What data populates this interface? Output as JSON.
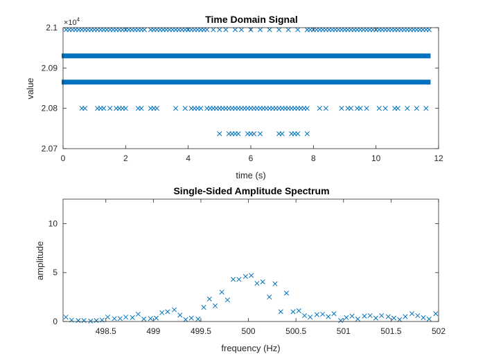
{
  "chart_data": [
    {
      "type": "scatter",
      "title": "Time Domain Signal",
      "xlabel": "time (s)",
      "ylabel": "value",
      "xlim": [
        0,
        12
      ],
      "ylim": [
        20700,
        21000
      ],
      "xticks": [
        0,
        2,
        4,
        6,
        8,
        10,
        12
      ],
      "xtick_labels": [
        "0",
        "2",
        "4",
        "6",
        "8",
        "10",
        "12"
      ],
      "yticks": [
        20700,
        20800,
        20900,
        21000
      ],
      "ytick_labels": [
        "2.07",
        "2.08",
        "2.09",
        "2.1"
      ],
      "y_exponent_label": "×10",
      "y_exponent_power": "4",
      "marker": "x",
      "color": "#0072BD",
      "series": [
        {
          "values_at": 20995,
          "x": [
            0.1,
            0.2,
            0.3,
            0.4,
            0.5,
            0.6,
            0.7,
            0.8,
            0.9,
            1.0,
            1.1,
            1.2,
            1.3,
            1.4,
            1.5,
            1.6,
            1.7,
            1.8,
            1.9,
            2.0,
            2.1,
            2.2,
            2.3,
            2.4,
            2.5,
            2.6,
            2.8,
            2.9,
            3.0,
            3.1,
            3.2,
            3.3,
            3.4,
            3.5,
            3.6,
            3.7,
            3.8,
            3.9,
            4.0,
            4.1,
            4.2,
            4.3,
            4.4,
            4.5,
            4.6,
            4.8,
            5.0,
            5.2,
            5.5,
            5.7,
            6.0,
            6.3,
            6.6,
            6.9,
            7.2,
            7.5,
            7.8,
            7.9,
            8.0,
            8.1,
            8.2,
            8.3,
            8.4,
            8.5,
            8.6,
            8.7,
            8.8,
            8.9,
            9.0,
            9.1,
            9.2,
            9.3,
            9.4,
            9.5,
            9.6,
            9.7,
            9.8,
            9.9,
            10.0,
            10.1,
            10.2,
            10.3,
            10.4,
            10.5,
            10.6,
            10.7,
            10.8,
            10.9,
            11.0,
            11.1,
            11.2,
            11.3,
            11.4,
            11.5,
            11.6,
            11.7
          ]
        },
        {
          "band_at": 20930,
          "x_start": 0,
          "x_end": 11.7
        },
        {
          "band_at": 20865,
          "x_start": 0,
          "x_end": 11.7
        },
        {
          "values_at": 20800,
          "x": [
            0.6,
            0.7,
            1.1,
            1.2,
            1.3,
            1.5,
            1.7,
            1.8,
            1.9,
            2.0,
            2.4,
            2.5,
            2.8,
            2.9,
            3.0,
            3.6,
            3.9,
            4.1,
            4.2,
            4.3,
            4.4,
            4.6,
            4.7,
            4.8,
            4.9,
            5.0,
            5.1,
            5.2,
            5.3,
            5.4,
            5.5,
            5.6,
            5.7,
            5.8,
            5.9,
            6.0,
            6.1,
            6.2,
            6.3,
            6.4,
            6.5,
            6.6,
            6.7,
            6.8,
            6.9,
            7.0,
            7.1,
            7.2,
            7.3,
            7.4,
            7.5,
            7.6,
            7.7,
            7.8,
            8.2,
            8.4,
            8.9,
            9.1,
            9.2,
            9.4,
            9.5,
            9.7,
            10.1,
            10.3,
            10.6,
            10.7,
            11.0,
            11.3,
            11.6
          ]
        },
        {
          "values_at": 20737,
          "x": [
            5.0,
            5.3,
            5.4,
            5.5,
            5.6,
            5.9,
            6.0,
            6.1,
            6.3,
            6.9,
            7.0,
            7.3,
            7.4,
            7.5,
            7.8
          ]
        }
      ]
    },
    {
      "type": "scatter",
      "title": "Single-Sided Amplitude Spectrum",
      "xlabel": "frequency (Hz)",
      "ylabel": "amplitude",
      "xlim": [
        498.05,
        502
      ],
      "ylim": [
        0,
        12.5
      ],
      "xticks": [
        498.5,
        499,
        499.5,
        500,
        500.5,
        501,
        501.5,
        502
      ],
      "xtick_labels": [
        "498.5",
        "499",
        "499.5",
        "500",
        "500.5",
        "501",
        "501.5",
        "502"
      ],
      "yticks": [
        0,
        5,
        10
      ],
      "ytick_labels": [
        "0",
        "5",
        "10"
      ],
      "marker": "x",
      "color": "#0072BD",
      "x": [
        498.08,
        498.21,
        498.34,
        498.46,
        498.59,
        498.71,
        498.84,
        498.97,
        499.09,
        499.22,
        499.34,
        499.47,
        499.59,
        499.72,
        499.84,
        499.97,
        500.09,
        500.22,
        500.34,
        500.47,
        500.59,
        500.72,
        500.84,
        500.97,
        501.09,
        501.22,
        501.34,
        501.47,
        501.59,
        501.72,
        501.84,
        501.97,
        498.14,
        498.27,
        498.4,
        498.52,
        498.65,
        498.78,
        498.9,
        499.03,
        499.15,
        499.28,
        499.4,
        499.53,
        499.65,
        499.78,
        499.9,
        500.03,
        500.15,
        500.28,
        500.4,
        500.53,
        500.65,
        500.78,
        500.9,
        501.03,
        501.15,
        501.28,
        501.4,
        501.53,
        501.65,
        501.78,
        501.9
      ],
      "y": [
        0.45,
        0.1,
        0.05,
        0.15,
        0.3,
        0.45,
        0.75,
        0.3,
        0.9,
        1.2,
        0.2,
        0.25,
        2.3,
        3.0,
        4.3,
        4.6,
        3.9,
        2.5,
        1.0,
        1.0,
        0.6,
        0.7,
        0.5,
        0.1,
        0.55,
        0.55,
        0.35,
        0.5,
        0.2,
        0.8,
        0.4,
        0.8,
        0.15,
        0.1,
        0.1,
        0.45,
        0.3,
        0.4,
        0.25,
        0.35,
        1.0,
        0.65,
        0.35,
        1.45,
        1.6,
        2.2,
        4.3,
        4.7,
        4.05,
        3.85,
        2.9,
        1.1,
        0.45,
        0.75,
        0.8,
        0.4,
        0.25,
        0.6,
        0.6,
        0.35,
        0.5,
        0.6,
        0.25
      ]
    }
  ]
}
